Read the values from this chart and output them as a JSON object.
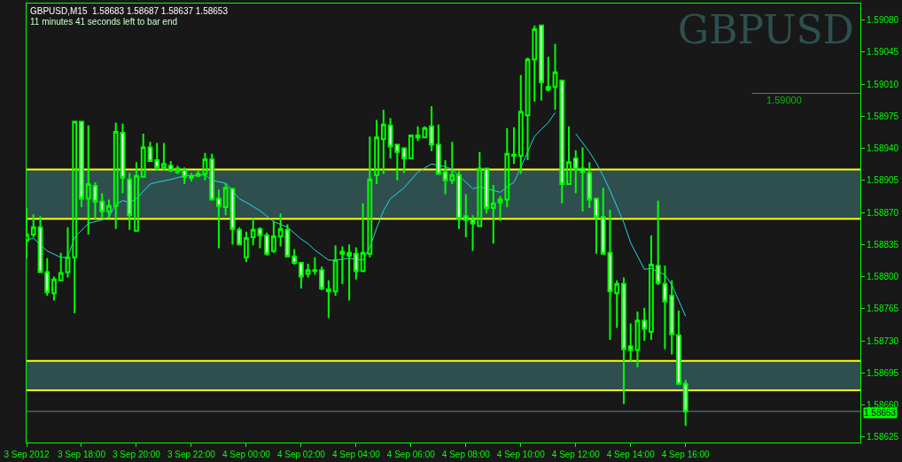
{
  "chart_data": {
    "type": "candlestick",
    "title": "GBPUSD,M15  1.58683 1.58687 1.58637 1.58653",
    "subtitle": "11 minutes 41 seconds left to bar end",
    "annotations": [
      "GBPUSD"
    ],
    "x": [
      "2012-09-03T16:00",
      "2012-09-03T16:15",
      "2012-09-03T16:30",
      "2012-09-03T16:45",
      "2012-09-03T17:00",
      "2012-09-03T17:15",
      "2012-09-03T17:30",
      "2012-09-03T17:45",
      "2012-09-03T18:00",
      "2012-09-03T18:15",
      "2012-09-03T18:30",
      "2012-09-03T18:45",
      "2012-09-03T19:00",
      "2012-09-03T19:15",
      "2012-09-03T19:30",
      "2012-09-03T19:45",
      "2012-09-03T20:00",
      "2012-09-03T20:15",
      "2012-09-03T20:30",
      "2012-09-03T20:45",
      "2012-09-03T21:00",
      "2012-09-03T21:15",
      "2012-09-03T21:30",
      "2012-09-03T21:45",
      "2012-09-03T22:00",
      "2012-09-03T22:15",
      "2012-09-03T22:30",
      "2012-09-03T22:45",
      "2012-09-03T23:00",
      "2012-09-03T23:15",
      "2012-09-03T23:30",
      "2012-09-03T23:45",
      "2012-09-04T00:00",
      "2012-09-04T00:15",
      "2012-09-04T00:30",
      "2012-09-04T00:45",
      "2012-09-04T01:00",
      "2012-09-04T01:15",
      "2012-09-04T01:30",
      "2012-09-04T01:45",
      "2012-09-04T02:00",
      "2012-09-04T02:15",
      "2012-09-04T02:30",
      "2012-09-04T02:45",
      "2012-09-04T03:00",
      "2012-09-04T03:15",
      "2012-09-04T03:30",
      "2012-09-04T03:45",
      "2012-09-04T04:00",
      "2012-09-04T04:15",
      "2012-09-04T04:30",
      "2012-09-04T04:45",
      "2012-09-04T05:00",
      "2012-09-04T05:15",
      "2012-09-04T05:30",
      "2012-09-04T05:45",
      "2012-09-04T06:00",
      "2012-09-04T06:15",
      "2012-09-04T06:30",
      "2012-09-04T06:45",
      "2012-09-04T07:00",
      "2012-09-04T07:15",
      "2012-09-04T07:30",
      "2012-09-04T07:45",
      "2012-09-04T08:00",
      "2012-09-04T08:15",
      "2012-09-04T08:30",
      "2012-09-04T08:45",
      "2012-09-04T09:00",
      "2012-09-04T09:15",
      "2012-09-04T09:30",
      "2012-09-04T09:45",
      "2012-09-04T10:00",
      "2012-09-04T10:15",
      "2012-09-04T10:30",
      "2012-09-04T10:45",
      "2012-09-04T11:00",
      "2012-09-04T11:15",
      "2012-09-04T11:30",
      "2012-09-04T11:45",
      "2012-09-04T12:00",
      "2012-09-04T12:15",
      "2012-09-04T12:30",
      "2012-09-04T12:45",
      "2012-09-04T13:00",
      "2012-09-04T13:15",
      "2012-09-04T13:30",
      "2012-09-04T13:45",
      "2012-09-04T14:00",
      "2012-09-04T14:15",
      "2012-09-04T14:30",
      "2012-09-04T14:45",
      "2012-09-04T15:00",
      "2012-09-04T15:15",
      "2012-09-04T15:30",
      "2012-09-04T15:45",
      "2012-09-04T16:00"
    ],
    "ohlc": [
      [
        1.58839,
        1.58875,
        1.5882,
        1.58846
      ],
      [
        1.58846,
        1.58868,
        1.58843,
        1.58854
      ],
      [
        1.58854,
        1.58866,
        1.58804,
        1.58805
      ],
      [
        1.58805,
        1.5882,
        1.58779,
        1.58783
      ],
      [
        1.58782,
        1.588,
        1.58774,
        1.58797
      ],
      [
        1.58796,
        1.58826,
        1.58795,
        1.58804
      ],
      [
        1.58805,
        1.58854,
        1.58799,
        1.58821
      ],
      [
        1.58821,
        1.58969,
        1.5876,
        1.58969
      ],
      [
        1.58969,
        1.5897,
        1.58876,
        1.58885
      ],
      [
        1.58885,
        1.58965,
        1.58846,
        1.58901
      ],
      [
        1.58899,
        1.58903,
        1.58862,
        1.58882
      ],
      [
        1.58882,
        1.58891,
        1.58863,
        1.58871
      ],
      [
        1.58871,
        1.58884,
        1.58864,
        1.58877
      ],
      [
        1.58877,
        1.58968,
        1.58852,
        1.58958
      ],
      [
        1.58957,
        1.58967,
        1.58891,
        1.58908
      ],
      [
        1.58906,
        1.58913,
        1.58851,
        1.58867
      ],
      [
        1.5885,
        1.58925,
        1.5885,
        1.5891
      ],
      [
        1.58909,
        1.58956,
        1.58909,
        1.58941
      ],
      [
        1.58941,
        1.58947,
        1.58926,
        1.58926
      ],
      [
        1.58927,
        1.58946,
        1.58916,
        1.58919
      ],
      [
        1.58919,
        1.58946,
        1.58916,
        1.58923
      ],
      [
        1.58921,
        1.58926,
        1.58914,
        1.58916
      ],
      [
        1.58914,
        1.58921,
        1.58912,
        1.58918
      ],
      [
        1.58916,
        1.58919,
        1.58901,
        1.58909
      ],
      [
        1.58908,
        1.58913,
        1.58904,
        1.5891
      ],
      [
        1.5891,
        1.58916,
        1.58909,
        1.58912
      ],
      [
        1.58912,
        1.58935,
        1.58905,
        1.58928
      ],
      [
        1.58928,
        1.58934,
        1.58884,
        1.58884
      ],
      [
        1.58885,
        1.58895,
        1.58831,
        1.58877
      ],
      [
        1.58876,
        1.58902,
        1.58867,
        1.58897
      ],
      [
        1.58896,
        1.58896,
        1.58835,
        1.58852
      ],
      [
        1.58851,
        1.58854,
        1.58834,
        1.58835
      ],
      [
        1.58821,
        1.58849,
        1.58816,
        1.58842
      ],
      [
        1.58843,
        1.58864,
        1.58834,
        1.58851
      ],
      [
        1.58852,
        1.58854,
        1.58831,
        1.58845
      ],
      [
        1.58845,
        1.58848,
        1.58823,
        1.58825
      ],
      [
        1.58828,
        1.58861,
        1.58826,
        1.58844
      ],
      [
        1.58844,
        1.58869,
        1.58833,
        1.58852
      ],
      [
        1.58851,
        1.58857,
        1.58821,
        1.58822
      ],
      [
        1.58822,
        1.5883,
        1.58813,
        1.58815
      ],
      [
        1.58815,
        1.58815,
        1.58787,
        1.588
      ],
      [
        1.58803,
        1.58814,
        1.58799,
        1.58807
      ],
      [
        1.58807,
        1.58821,
        1.58802,
        1.58806
      ],
      [
        1.58807,
        1.58811,
        1.58785,
        1.58787
      ],
      [
        1.58786,
        1.58796,
        1.58755,
        1.58784
      ],
      [
        1.58784,
        1.58834,
        1.58779,
        1.58818
      ],
      [
        1.58827,
        1.58833,
        1.58792,
        1.58825
      ],
      [
        1.58826,
        1.58835,
        1.58774,
        1.58823
      ],
      [
        1.58825,
        1.58832,
        1.58797,
        1.58806
      ],
      [
        1.58806,
        1.5888,
        1.58805,
        1.58826
      ],
      [
        1.58825,
        1.58953,
        1.58821,
        1.58906
      ],
      [
        1.58911,
        1.58971,
        1.58901,
        1.58952
      ],
      [
        1.5895,
        1.58982,
        1.58912,
        1.58966
      ],
      [
        1.58965,
        1.58973,
        1.58929,
        1.58942
      ],
      [
        1.58944,
        1.58945,
        1.58905,
        1.58936
      ],
      [
        1.5894,
        1.5894,
        1.58913,
        1.58929
      ],
      [
        1.58929,
        1.58955,
        1.58928,
        1.58954
      ],
      [
        1.58954,
        1.58964,
        1.58948,
        1.58952
      ],
      [
        1.58952,
        1.58964,
        1.58951,
        1.58962
      ],
      [
        1.58964,
        1.58986,
        1.58937,
        1.58944
      ],
      [
        1.58944,
        1.58966,
        1.58912,
        1.58912
      ],
      [
        1.58914,
        1.58927,
        1.5889,
        1.58905
      ],
      [
        1.58905,
        1.58947,
        1.58901,
        1.58911
      ],
      [
        1.58911,
        1.58915,
        1.58852,
        1.58863
      ],
      [
        1.58866,
        1.5889,
        1.58843,
        1.58862
      ],
      [
        1.58862,
        1.58867,
        1.58828,
        1.58858
      ],
      [
        1.58855,
        1.58936,
        1.58855,
        1.58918
      ],
      [
        1.58918,
        1.58918,
        1.58869,
        1.58875
      ],
      [
        1.58875,
        1.589,
        1.58836,
        1.5888
      ],
      [
        1.58881,
        1.58888,
        1.58861,
        1.58884
      ],
      [
        1.58884,
        1.58962,
        1.58876,
        1.58934
      ],
      [
        1.58933,
        1.58963,
        1.58923,
        1.58932
      ],
      [
        1.58932,
        1.5902,
        1.58912,
        1.5898
      ],
      [
        1.58976,
        1.59039,
        1.58927,
        1.59037
      ],
      [
        1.59037,
        1.59074,
        1.58991,
        1.5907
      ],
      [
        1.59074,
        1.59074,
        1.58992,
        1.59012
      ],
      [
        1.59007,
        1.5904,
        1.59002,
        1.59004
      ],
      [
        1.59007,
        1.59054,
        1.58982,
        1.59023
      ],
      [
        1.59014,
        1.59014,
        1.5888,
        1.58901
      ],
      [
        1.58901,
        1.58964,
        1.589,
        1.58925
      ],
      [
        1.58929,
        1.58938,
        1.58891,
        1.58917
      ],
      [
        1.58918,
        1.58941,
        1.58871,
        1.58914
      ],
      [
        1.58913,
        1.58925,
        1.58875,
        1.58884
      ],
      [
        1.58885,
        1.58885,
        1.58825,
        1.58865
      ],
      [
        1.58865,
        1.58897,
        1.58825,
        1.58825
      ],
      [
        1.58826,
        1.58873,
        1.58731,
        1.58784
      ],
      [
        1.58782,
        1.58796,
        1.58744,
        1.58792
      ],
      [
        1.58792,
        1.58799,
        1.58661,
        1.58721
      ],
      [
        1.58724,
        1.58749,
        1.58708,
        1.5872
      ],
      [
        1.5872,
        1.58762,
        1.58701,
        1.58752
      ],
      [
        1.58752,
        1.58766,
        1.5873,
        1.58743
      ],
      [
        1.5874,
        1.58845,
        1.58731,
        1.58813
      ],
      [
        1.58812,
        1.58883,
        1.58791,
        1.58793
      ],
      [
        1.58792,
        1.58812,
        1.58721,
        1.58773
      ],
      [
        1.58779,
        1.58796,
        1.58715,
        1.58737
      ],
      [
        1.58736,
        1.58763,
        1.58683,
        1.58683
      ],
      [
        1.58683,
        1.58687,
        1.58637,
        1.58653
      ]
    ],
    "series": [
      {
        "type": "line",
        "color": "#20d8e8",
        "x": [
          "2012-09-03T16:00",
          "2012-09-03T16:15",
          "2012-09-03T16:30",
          "2012-09-03T16:45",
          "2012-09-03T17:15",
          "2012-09-03T17:30",
          "2012-09-03T17:45",
          "2012-09-03T18:15",
          "2012-09-03T18:45",
          "2012-09-03T19:00",
          "2012-09-03T19:15",
          "2012-09-03T19:30",
          "2012-09-03T19:45",
          "2012-09-03T20:00",
          "2012-09-03T20:30",
          "2012-09-03T20:45",
          "2012-09-03T21:15",
          "2012-09-03T21:45",
          "2012-09-03T22:30",
          "2012-09-03T22:45",
          "2012-09-03T23:15",
          "2012-09-03T23:45",
          "2012-09-04T00:00",
          "2012-09-04T00:30",
          "2012-09-04T01:00",
          "2012-09-04T01:30",
          "2012-09-04T02:00",
          "2012-09-04T02:15",
          "2012-09-04T02:30",
          "2012-09-04T03:00",
          "2012-09-04T03:15",
          "2012-09-04T03:45",
          "2012-09-04T04:15",
          "2012-09-04T04:30",
          "2012-09-04T04:45",
          "2012-09-04T05:00",
          "2012-09-04T05:15",
          "2012-09-04T05:45",
          "2012-09-04T06:15",
          "2012-09-04T06:45",
          "2012-09-04T07:15",
          "2012-09-04T07:30",
          "2012-09-04T07:45",
          "2012-09-04T08:15",
          "2012-09-04T08:30",
          "2012-09-04T09:15",
          "2012-09-04T09:30",
          "2012-09-04T09:45",
          "2012-09-04T10:00",
          "2012-09-04T10:30",
          "2012-09-04T10:45",
          "2012-09-04T11:00",
          "2012-09-04T11:15",
          "2012-09-04T11:30",
          "2012-09-04T12:00",
          "2012-09-04T12:30",
          "2012-09-04T12:45",
          "2012-09-04T13:00",
          "2012-09-04T13:15",
          "2012-09-04T13:45",
          "2012-09-04T14:00",
          "2012-09-04T14:30",
          "2012-09-04T14:45",
          "2012-09-04T15:15",
          "2012-09-04T15:30",
          "2012-09-04T16:00"
        ],
        "values": [
          1.5884,
          1.58842,
          1.58835,
          1.58828,
          1.58821,
          1.58821,
          1.58843,
          1.58858,
          1.58862,
          1.58865,
          1.58879,
          1.58883,
          1.58881,
          1.58885,
          1.58901,
          1.58903,
          1.58906,
          1.5891,
          1.58911,
          1.58905,
          1.58902,
          1.58885,
          1.58881,
          1.58872,
          1.5886,
          1.58854,
          1.58841,
          1.58836,
          1.58829,
          1.58818,
          1.58818,
          1.5882,
          1.58818,
          1.58832,
          1.58853,
          1.58872,
          1.58885,
          1.58897,
          1.58914,
          1.58923,
          1.5892,
          1.58917,
          1.5891,
          1.58896,
          1.58898,
          1.58892,
          1.58898,
          1.58903,
          1.58919,
          1.58953,
          1.58961,
          1.58968,
          1.58979,
          null,
          1.58956,
          1.58936,
          1.58924,
          1.5891,
          1.58894,
          1.58859,
          1.58837,
          1.58808,
          1.58809,
          1.58802,
          1.58791,
          1.58757
        ]
      }
    ],
    "xlim": [
      "2012-09-03T16:00",
      "2012-09-04T22:22"
    ],
    "xticks": [
      {
        "value": "2012-09-03T16:00",
        "label": "3 Sep 2012"
      },
      {
        "value": "2012-09-03T18:00",
        "label": "3 Sep 18:00"
      },
      {
        "value": "2012-09-03T20:00",
        "label": "3 Sep 20:00"
      },
      {
        "value": "2012-09-03T22:00",
        "label": "3 Sep 22:00"
      },
      {
        "value": "2012-09-04T00:00",
        "label": "4 Sep 00:00"
      },
      {
        "value": "2012-09-04T02:00",
        "label": "4 Sep 02:00"
      },
      {
        "value": "2012-09-04T04:00",
        "label": "4 Sep 04:00"
      },
      {
        "value": "2012-09-04T06:00",
        "label": "4 Sep 06:00"
      },
      {
        "value": "2012-09-04T08:00",
        "label": "4 Sep 08:00"
      },
      {
        "value": "2012-09-04T10:00",
        "label": "4 Sep 10:00"
      },
      {
        "value": "2012-09-04T12:00",
        "label": "4 Sep 12:00"
      },
      {
        "value": "2012-09-04T14:00",
        "label": "4 Sep 14:00"
      },
      {
        "value": "2012-09-04T16:00",
        "label": "4 Sep 16:00"
      }
    ],
    "ylim": [
      1.58619,
      1.59098
    ],
    "yticks": [
      {
        "value": 1.5908,
        "label": "1.59080"
      },
      {
        "value": 1.59045,
        "label": "1.59045"
      },
      {
        "value": 1.5901,
        "label": "1.59010"
      },
      {
        "value": 1.58975,
        "label": "1.58975"
      },
      {
        "value": 1.5894,
        "label": "1.58940"
      },
      {
        "value": 1.58905,
        "label": "1.58905"
      },
      {
        "value": 1.5887,
        "label": "1.58870"
      },
      {
        "value": 1.58835,
        "label": "1.58835"
      },
      {
        "value": 1.588,
        "label": "1.58800"
      },
      {
        "value": 1.58765,
        "label": "1.58765"
      },
      {
        "value": 1.5873,
        "label": "1.58730"
      },
      {
        "value": 1.58695,
        "label": "1.58695"
      },
      {
        "value": 1.5866,
        "label": "1.58660"
      },
      {
        "value": 1.58625,
        "label": "1.58625"
      }
    ],
    "ref_lines": [
      {
        "axis": "y",
        "value": 1.59,
        "label": "1.59000",
        "color": "#00c000"
      },
      {
        "axis": "y",
        "value": 1.58653,
        "label": "1.58653",
        "color": "#708090"
      },
      {
        "axis": "y",
        "value": 1.58917,
        "color": "#ffff00"
      },
      {
        "axis": "y",
        "value": 1.58863,
        "color": "#ffff00"
      },
      {
        "axis": "y",
        "value": 1.58708,
        "color": "#ffff00"
      },
      {
        "axis": "y",
        "value": 1.58676,
        "color": "#ffff00"
      }
    ],
    "bands": [
      {
        "axis": "y",
        "from": 1.58863,
        "to": 1.58917,
        "color": "#2f4f4f"
      },
      {
        "axis": "y",
        "from": 1.58676,
        "to": 1.58708,
        "color": "#2f4f4f"
      }
    ],
    "grid": false
  }
}
